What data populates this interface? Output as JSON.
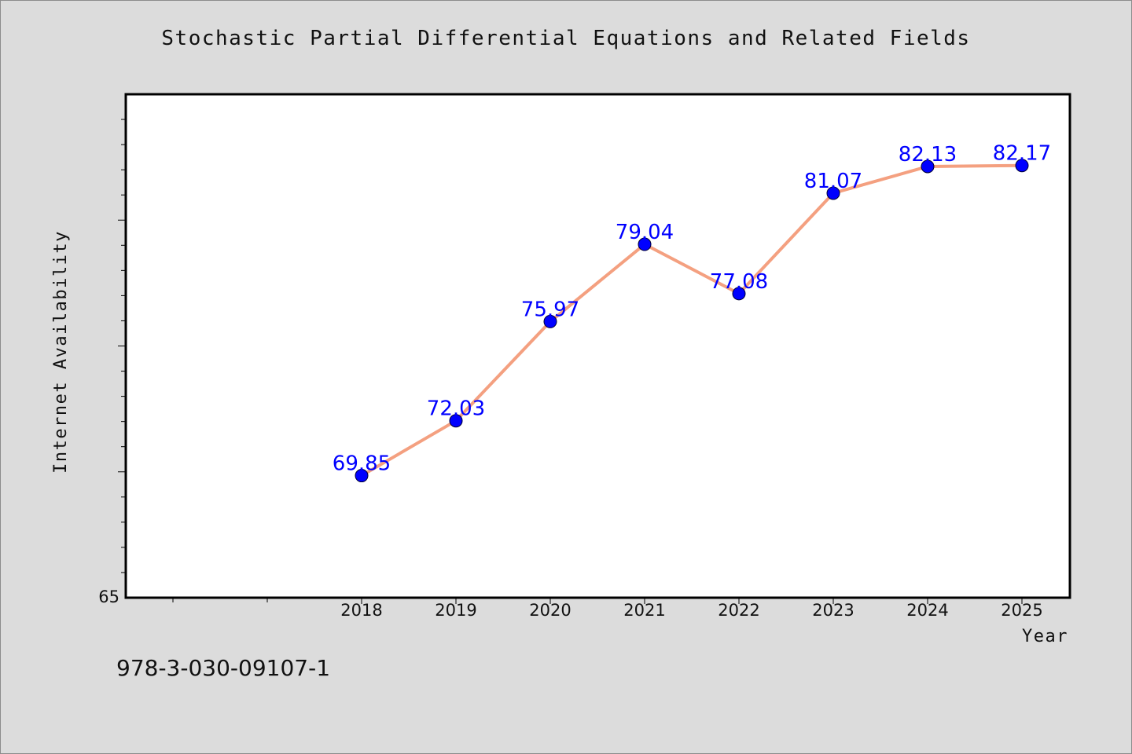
{
  "page_title": "Stochastic Partial Differential Equations and Related Fields",
  "isbn": "978-3-030-09107-1",
  "chart_data": {
    "type": "line",
    "title": "Stochastic Partial Differential Equations and Related Fields",
    "xlabel": "Year",
    "ylabel": "Internet Availability",
    "categories": [
      "2018",
      "2019",
      "2020",
      "2021",
      "2022",
      "2023",
      "2024",
      "2025"
    ],
    "series": [
      {
        "values": [
          69.85,
          72.03,
          75.97,
          79.04,
          77.08,
          81.07,
          82.13,
          82.17
        ],
        "labels": [
          "69.85",
          "72.03",
          "75.97",
          "79.04",
          "77.08",
          "81.07",
          "82.13",
          "82.17"
        ]
      }
    ],
    "ylim": [
      65,
      85
    ],
    "y_tick_labels": [
      "65"
    ],
    "grid": false,
    "line_color": "#f4a080",
    "marker_color": "#0000ff",
    "label_color": "#0000ff"
  }
}
